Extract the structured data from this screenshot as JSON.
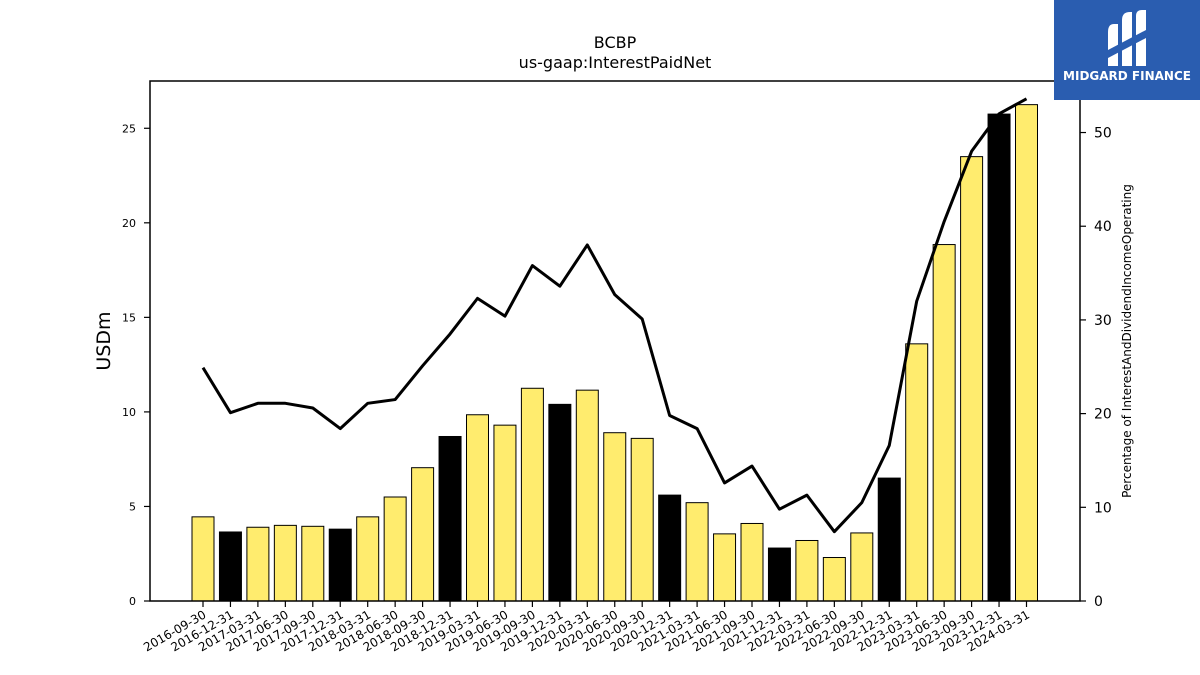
{
  "chart_data": {
    "type": "bar",
    "title": "BCBP",
    "subtitle": "us-gaap:InterestPaidNet",
    "ylabel": "USDm",
    "y2label": "Percentage of InterestAndDividendIncomeOperating",
    "ylim": [
      0,
      27.5
    ],
    "y2lim": [
      0,
      55.5
    ],
    "yticks": [
      0,
      5,
      10,
      15,
      20,
      25
    ],
    "y2ticks": [
      0,
      10,
      20,
      30,
      40,
      50
    ],
    "categories": [
      "2016-09-30",
      "2016-12-31",
      "2017-03-31",
      "2017-06-30",
      "2017-09-30",
      "2017-12-31",
      "2018-03-31",
      "2018-06-30",
      "2018-09-30",
      "2018-12-31",
      "2019-03-31",
      "2019-06-30",
      "2019-09-30",
      "2019-12-31",
      "2020-03-31",
      "2020-06-30",
      "2020-09-30",
      "2020-12-31",
      "2021-03-31",
      "2021-06-30",
      "2021-09-30",
      "2021-12-31",
      "2022-03-31",
      "2022-06-30",
      "2022-09-30",
      "2022-12-31",
      "2023-03-31",
      "2023-06-30",
      "2023-09-30",
      "2023-12-31",
      "2024-03-31"
    ],
    "series": [
      {
        "type": "bar",
        "values": [
          4.45,
          3.65,
          3.9,
          4.0,
          3.95,
          3.8,
          4.45,
          5.5,
          7.05,
          8.7,
          9.85,
          9.3,
          11.25,
          10.4,
          11.15,
          8.9,
          8.6,
          5.6,
          5.2,
          3.55,
          4.1,
          2.8,
          3.2,
          2.3,
          3.6,
          6.5,
          13.6,
          18.85,
          23.5,
          25.75,
          26.25
        ]
      },
      {
        "type": "line",
        "axis": "right",
        "values": [
          24.9,
          20.1,
          21.1,
          21.1,
          20.6,
          18.4,
          21.1,
          21.5,
          25.1,
          28.5,
          32.3,
          30.4,
          35.8,
          33.6,
          38.0,
          32.7,
          30.1,
          19.8,
          18.4,
          12.6,
          14.4,
          9.8,
          11.3,
          7.4,
          10.5,
          16.6,
          32.0,
          40.5,
          48.0,
          52.0,
          53.6
        ]
      }
    ],
    "bar_colors": {
      "quarter": "#ffec6e",
      "year_end": "#000000"
    },
    "line_color": "#000000",
    "grid": false,
    "legend": "none"
  },
  "logo": {
    "text": "MIDGARD FINANCE",
    "bg_color": "#2a5db0",
    "icon": "midgard-logo-icon"
  }
}
